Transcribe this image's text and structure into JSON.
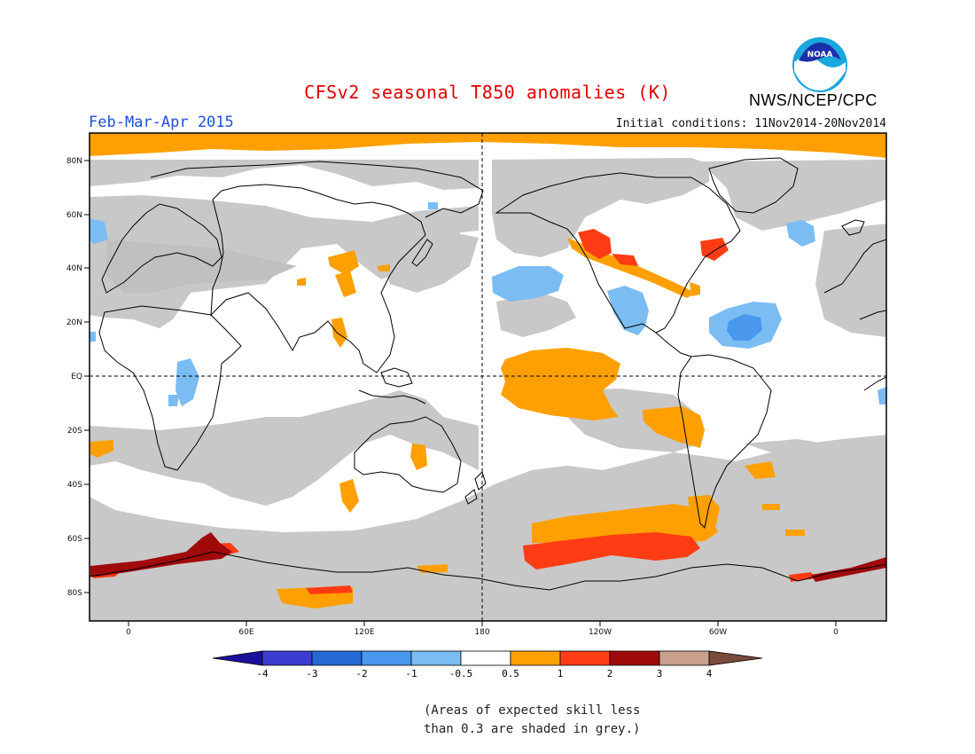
{
  "header": {
    "title": "CFSv2 seasonal T850 anomalies (K)",
    "period": "Feb-Mar-Apr 2015",
    "initial_conditions": "Initial conditions: 11Nov2014-20Nov2014",
    "agency": "NWS/NCEP/CPC",
    "logo_text": "NOAA"
  },
  "map": {
    "lat_labels": [
      "80N",
      "60N",
      "40N",
      "20N",
      "EQ",
      "20S",
      "40S",
      "60S",
      "80S"
    ],
    "lon_labels": [
      "0",
      "60E",
      "120E",
      "180",
      "120W",
      "60W",
      "0"
    ],
    "colors": {
      "grey_skill": "#c8c8c8",
      "ocean_white": "#ffffff"
    }
  },
  "legend": {
    "tick_labels": [
      "-4",
      "-3",
      "-2",
      "-1",
      "-0.5",
      "0.5",
      "1",
      "2",
      "3",
      "4"
    ],
    "colors": [
      "#1a0f9a",
      "#3c3cd2",
      "#2569d6",
      "#4a97ee",
      "#7bbcf3",
      "#ffffff",
      "#ffa000",
      "#ff3c14",
      "#a00a0a",
      "#c8a08c",
      "#7a4a3a"
    ]
  },
  "note": {
    "line1": "(Areas of expected skill less",
    "line2": "than 0.3 are shaded in grey.)"
  }
}
